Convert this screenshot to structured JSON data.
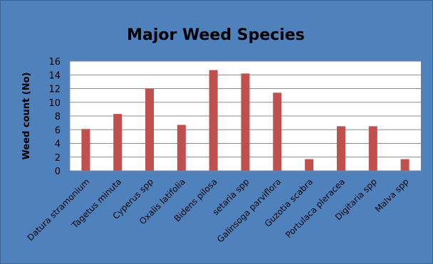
{
  "chart_data": {
    "type": "bar",
    "title": "Major Weed Species",
    "xlabel": "",
    "ylabel": "Weed count (No)",
    "ylim": [
      0,
      16
    ],
    "yticks": [
      0,
      2,
      4,
      6,
      8,
      10,
      12,
      14,
      16
    ],
    "grid": true,
    "legend": "none",
    "bar_color": "#c0504d",
    "categories": [
      "Datura stramonium",
      "Tagetus minuta",
      "Cyperus spp",
      "Oxalis latifolia",
      "Bidens pilosa",
      "setaria spp",
      "Galinsoga parviflora",
      "Guzotia scabra",
      "Portulaca pleracea",
      "Digitaria spp",
      "Malva spp"
    ],
    "values": [
      6.1,
      8.3,
      12.0,
      6.7,
      14.7,
      14.2,
      11.4,
      1.7,
      6.5,
      6.5,
      1.7
    ]
  }
}
